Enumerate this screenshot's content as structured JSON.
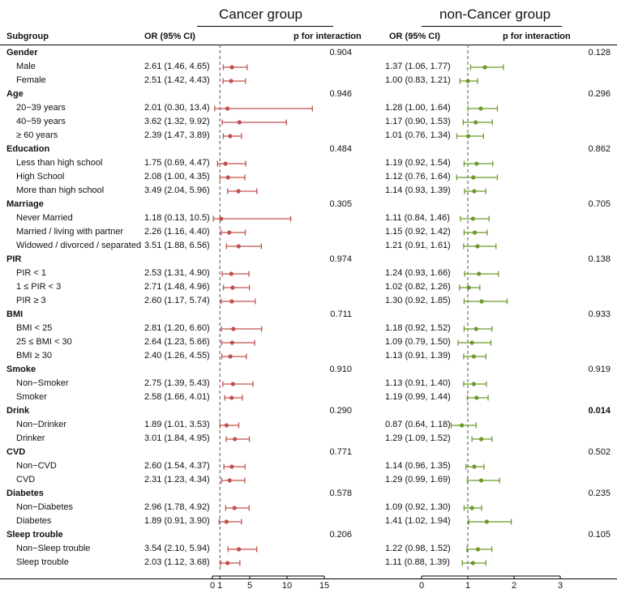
{
  "chart_data": {
    "type": "forest",
    "headers": {
      "subgroup": "Subgroup",
      "or": "OR (95% CI)",
      "p": "p for interaction"
    },
    "panels": [
      {
        "name": "Cancer group",
        "color": "#c0504d",
        "ticks": [
          0,
          1,
          5,
          10,
          15
        ],
        "xlim": [
          0,
          15
        ],
        "ref": 1
      },
      {
        "name": "non-Cancer group",
        "color": "#6a9a2a",
        "ticks": [
          0,
          1,
          2,
          3
        ],
        "xlim": [
          0,
          3
        ],
        "ref": 1
      }
    ],
    "rows": [
      {
        "type": "group",
        "label": "Gender",
        "p1": "0.904",
        "p2": "0.128"
      },
      {
        "type": "item",
        "label": "Male",
        "ci1": "2.61 (1.46, 4.65)",
        "or1": 2.61,
        "lo1": 1.46,
        "hi1": 4.65,
        "ci2": "1.37 (1.06, 1.77)",
        "or2": 1.37,
        "lo2": 1.06,
        "hi2": 1.77
      },
      {
        "type": "item",
        "label": "Female",
        "ci1": "2.51 (1.42, 4.43)",
        "or1": 2.51,
        "lo1": 1.42,
        "hi1": 4.43,
        "ci2": "1.00 (0.83, 1.21)",
        "or2": 1.0,
        "lo2": 0.83,
        "hi2": 1.21
      },
      {
        "type": "group",
        "label": "Age",
        "p1": "0.946",
        "p2": "0.296"
      },
      {
        "type": "item",
        "label": "20−39 years",
        "ci1": "2.01 (0.30, 13.4)",
        "or1": 2.01,
        "lo1": 0.3,
        "hi1": 13.4,
        "ci2": "1.28 (1.00, 1.64)",
        "or2": 1.28,
        "lo2": 1.0,
        "hi2": 1.64
      },
      {
        "type": "item",
        "label": "40−59 years",
        "ci1": "3.62 (1.32, 9.92)",
        "or1": 3.62,
        "lo1": 1.32,
        "hi1": 9.92,
        "ci2": "1.17 (0.90, 1.53)",
        "or2": 1.17,
        "lo2": 0.9,
        "hi2": 1.53
      },
      {
        "type": "item",
        "label": "≥ 60 years",
        "ci1": "2.39 (1.47, 3.89)",
        "or1": 2.39,
        "lo1": 1.47,
        "hi1": 3.89,
        "ci2": "1.01 (0.76, 1.34)",
        "or2": 1.01,
        "lo2": 0.76,
        "hi2": 1.34
      },
      {
        "type": "group",
        "label": "Education",
        "p1": "0.484",
        "p2": "0.862"
      },
      {
        "type": "item",
        "label": "Less than high school",
        "ci1": "1.75 (0.69, 4.47)",
        "or1": 1.75,
        "lo1": 0.69,
        "hi1": 4.47,
        "ci2": "1.19 (0.92, 1.54)",
        "or2": 1.19,
        "lo2": 0.92,
        "hi2": 1.54
      },
      {
        "type": "item",
        "label": "High School",
        "ci1": "2.08 (1.00, 4.35)",
        "or1": 2.08,
        "lo1": 1.0,
        "hi1": 4.35,
        "ci2": "1.12 (0.76, 1.64)",
        "or2": 1.12,
        "lo2": 0.76,
        "hi2": 1.64
      },
      {
        "type": "item",
        "label": "More than high school",
        "ci1": "3.49 (2.04, 5.96)",
        "or1": 3.49,
        "lo1": 2.04,
        "hi1": 5.96,
        "ci2": "1.14 (0.93, 1.39)",
        "or2": 1.14,
        "lo2": 0.93,
        "hi2": 1.39
      },
      {
        "type": "group",
        "label": "Marriage",
        "p1": "0.305",
        "p2": "0.705"
      },
      {
        "type": "item",
        "label": "Never Married",
        "ci1": "1.18 (0.13, 10.5)",
        "or1": 1.18,
        "lo1": 0.13,
        "hi1": 10.5,
        "ci2": "1.11 (0.84, 1.46)",
        "or2": 1.11,
        "lo2": 0.84,
        "hi2": 1.46
      },
      {
        "type": "item",
        "label": "Married / living with partner",
        "ci1": "2.26 (1.16, 4.40)",
        "or1": 2.26,
        "lo1": 1.16,
        "hi1": 4.4,
        "ci2": "1.15 (0.92, 1.42)",
        "or2": 1.15,
        "lo2": 0.92,
        "hi2": 1.42
      },
      {
        "type": "item",
        "label": "Widowed / divorced / separated",
        "ci1": "3.51 (1.88, 6.56)",
        "or1": 3.51,
        "lo1": 1.88,
        "hi1": 6.56,
        "ci2": "1.21 (0.91, 1.61)",
        "or2": 1.21,
        "lo2": 0.91,
        "hi2": 1.61
      },
      {
        "type": "group",
        "label": "PIR",
        "p1": "0.974",
        "p2": "0.138"
      },
      {
        "type": "item",
        "label": "PIR < 1",
        "ci1": "2.53 (1.31, 4.90)",
        "or1": 2.53,
        "lo1": 1.31,
        "hi1": 4.9,
        "ci2": "1.24 (0.93, 1.66)",
        "or2": 1.24,
        "lo2": 0.93,
        "hi2": 1.66
      },
      {
        "type": "item",
        "label": "1 ≤ PIR < 3",
        "ci1": "2.71 (1.48, 4.96)",
        "or1": 2.71,
        "lo1": 1.48,
        "hi1": 4.96,
        "ci2": "1.02 (0.82, 1.26)",
        "or2": 1.02,
        "lo2": 0.82,
        "hi2": 1.26
      },
      {
        "type": "item",
        "label": "PIR ≥ 3",
        "ci1": "2.60 (1.17, 5.74)",
        "or1": 2.6,
        "lo1": 1.17,
        "hi1": 5.74,
        "ci2": "1.30 (0.92, 1.85)",
        "or2": 1.3,
        "lo2": 0.92,
        "hi2": 1.85
      },
      {
        "type": "group",
        "label": "BMI",
        "p1": "0.711",
        "p2": "0.933"
      },
      {
        "type": "item",
        "label": "BMI < 25",
        "ci1": "2.81 (1.20, 6.60)",
        "or1": 2.81,
        "lo1": 1.2,
        "hi1": 6.6,
        "ci2": "1.18 (0.92, 1.52)",
        "or2": 1.18,
        "lo2": 0.92,
        "hi2": 1.52
      },
      {
        "type": "item",
        "label": "25 ≤ BMI < 30",
        "ci1": "2.64 (1.23, 5.66)",
        "or1": 2.64,
        "lo1": 1.23,
        "hi1": 5.66,
        "ci2": "1.09 (0.79, 1.50)",
        "or2": 1.09,
        "lo2": 0.79,
        "hi2": 1.5
      },
      {
        "type": "item",
        "label": "BMI ≥ 30",
        "ci1": "2.40 (1.26, 4.55)",
        "or1": 2.4,
        "lo1": 1.26,
        "hi1": 4.55,
        "ci2": "1.13 (0.91, 1.39)",
        "or2": 1.13,
        "lo2": 0.91,
        "hi2": 1.39
      },
      {
        "type": "group",
        "label": "Smoke",
        "p1": "0.910",
        "p2": "0.919"
      },
      {
        "type": "item",
        "label": "Non−Smoker",
        "ci1": "2.75 (1.39, 5.43)",
        "or1": 2.75,
        "lo1": 1.39,
        "hi1": 5.43,
        "ci2": "1.13 (0.91, 1.40)",
        "or2": 1.13,
        "lo2": 0.91,
        "hi2": 1.4
      },
      {
        "type": "item",
        "label": "Smoker",
        "ci1": "2.58 (1.66, 4.01)",
        "or1": 2.58,
        "lo1": 1.66,
        "hi1": 4.01,
        "ci2": "1.19 (0.99, 1.44)",
        "or2": 1.19,
        "lo2": 0.99,
        "hi2": 1.44
      },
      {
        "type": "group",
        "label": "Drink",
        "p1": "0.290",
        "p2": "0.014",
        "p2bold": true
      },
      {
        "type": "item",
        "label": "Non−Drinker",
        "ci1": "1.89 (1.01, 3.53)",
        "or1": 1.89,
        "lo1": 1.01,
        "hi1": 3.53,
        "ci2": "0.87 (0.64, 1.18)",
        "or2": 0.87,
        "lo2": 0.64,
        "hi2": 1.18
      },
      {
        "type": "item",
        "label": "Drinker",
        "ci1": "3.01 (1.84, 4.95)",
        "or1": 3.01,
        "lo1": 1.84,
        "hi1": 4.95,
        "ci2": "1.29 (1.09, 1.52)",
        "or2": 1.29,
        "lo2": 1.09,
        "hi2": 1.52
      },
      {
        "type": "group",
        "label": "CVD",
        "p1": "0.771",
        "p2": "0.502"
      },
      {
        "type": "item",
        "label": "Non−CVD",
        "ci1": "2.60 (1.54, 4.37)",
        "or1": 2.6,
        "lo1": 1.54,
        "hi1": 4.37,
        "ci2": "1.14 (0.96, 1.35)",
        "or2": 1.14,
        "lo2": 0.96,
        "hi2": 1.35
      },
      {
        "type": "item",
        "label": "CVD",
        "ci1": "2.31 (1.23, 4.34)",
        "or1": 2.31,
        "lo1": 1.23,
        "hi1": 4.34,
        "ci2": "1.29 (0.99, 1.69)",
        "or2": 1.29,
        "lo2": 0.99,
        "hi2": 1.69
      },
      {
        "type": "group",
        "label": "Diabetes",
        "p1": "0.578",
        "p2": "0.235"
      },
      {
        "type": "item",
        "label": "Non−Diabetes",
        "ci1": "2.96 (1.78, 4.92)",
        "or1": 2.96,
        "lo1": 1.78,
        "hi1": 4.92,
        "ci2": "1.09 (0.92, 1.30)",
        "or2": 1.09,
        "lo2": 0.92,
        "hi2": 1.3
      },
      {
        "type": "item",
        "label": "Diabetes",
        "ci1": "1.89 (0.91, 3.90)",
        "or1": 1.89,
        "lo1": 0.91,
        "hi1": 3.9,
        "ci2": "1.41 (1.02, 1.94)",
        "or2": 1.41,
        "lo2": 1.02,
        "hi2": 1.94
      },
      {
        "type": "group",
        "label": "Sleep trouble",
        "p1": "0.206",
        "p2": "0.105"
      },
      {
        "type": "item",
        "label": "Non−Sleep trouble",
        "ci1": "3.54 (2.10, 5.94)",
        "or1": 3.54,
        "lo1": 2.1,
        "hi1": 5.94,
        "ci2": "1.22 (0.98, 1.52)",
        "or2": 1.22,
        "lo2": 0.98,
        "hi2": 1.52
      },
      {
        "type": "item",
        "label": "Sleep trouble",
        "ci1": "2.03 (1.12, 3.68)",
        "or1": 2.03,
        "lo1": 1.12,
        "hi1": 3.68,
        "ci2": "1.11 (0.88, 1.39)",
        "or2": 1.11,
        "lo2": 0.88,
        "hi2": 1.39
      }
    ]
  }
}
